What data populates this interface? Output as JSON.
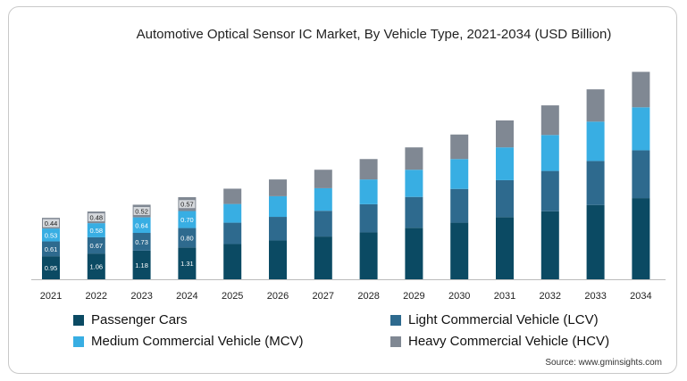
{
  "chart_data": {
    "type": "bar",
    "stacked": true,
    "title": "Automotive Optical Sensor IC Market, By Vehicle Type, 2021-2034 (USD Billion)",
    "categories": [
      "2021",
      "2022",
      "2023",
      "2024",
      "2025",
      "2026",
      "2027",
      "2028",
      "2029",
      "2030",
      "2031",
      "2032",
      "2033",
      "2034"
    ],
    "series": [
      {
        "name": "Passenger Cars",
        "color": "#0b4a63",
        "values": [
          0.95,
          1.06,
          1.18,
          1.31,
          1.45,
          1.6,
          1.76,
          1.93,
          2.12,
          2.33,
          2.56,
          2.8,
          3.06,
          3.34
        ],
        "labels": [
          "0.95",
          "1.06",
          "1.18",
          "1.31"
        ]
      },
      {
        "name": "Light Commercial Vehicle (LCV)",
        "color": "#2e6a8e",
        "values": [
          0.61,
          0.67,
          0.73,
          0.8,
          0.88,
          0.97,
          1.06,
          1.16,
          1.27,
          1.39,
          1.52,
          1.66,
          1.81,
          1.97
        ],
        "labels": [
          "0.61",
          "0.67",
          "0.73",
          "0.80"
        ]
      },
      {
        "name": "Medium Commercial Vehicle (MCV)",
        "color": "#38aee3",
        "values": [
          0.53,
          0.58,
          0.64,
          0.7,
          0.77,
          0.85,
          0.93,
          1.02,
          1.12,
          1.23,
          1.35,
          1.48,
          1.62,
          1.77
        ],
        "labels": [
          "0.53",
          "0.58",
          "0.64",
          "0.70"
        ]
      },
      {
        "name": "Heavy Commercial Vehicle (HCV)",
        "color": "#808893",
        "values": [
          0.44,
          0.48,
          0.52,
          0.57,
          0.63,
          0.69,
          0.76,
          0.84,
          0.92,
          1.01,
          1.11,
          1.22,
          1.33,
          1.46
        ],
        "labels": [
          "0.44",
          "0.48",
          "0.52",
          "0.57"
        ]
      }
    ],
    "ylim": [
      0,
      9
    ],
    "grid": false,
    "legend_position": "bottom"
  },
  "source": "Source: www.gminsights.com"
}
